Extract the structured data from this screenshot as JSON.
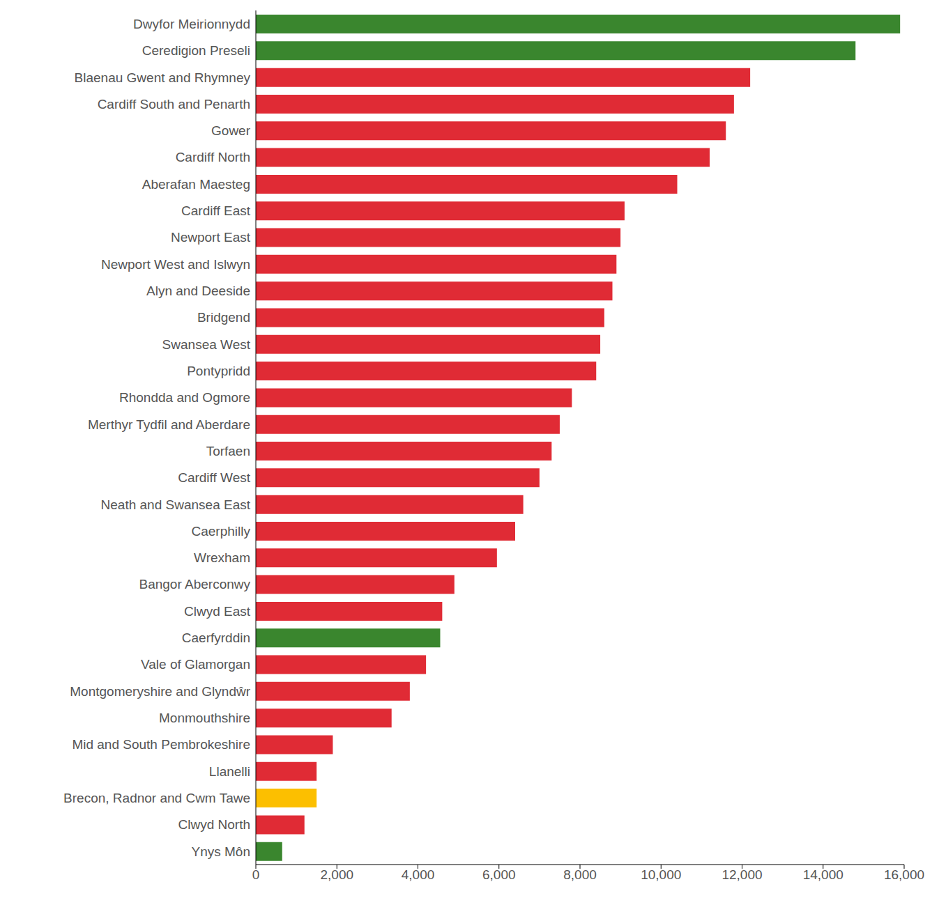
{
  "chart_data": {
    "type": "bar",
    "orientation": "horizontal",
    "categories": [
      "Dwyfor Meirionnydd",
      "Ceredigion Preseli",
      "Blaenau Gwent and Rhymney",
      "Cardiff South and Penarth",
      "Gower",
      "Cardiff North",
      "Aberafan Maesteg",
      "Cardiff East",
      "Newport East",
      "Newport West and Islwyn",
      "Alyn and Deeside",
      "Bridgend",
      "Swansea West",
      "Pontypridd",
      "Rhondda and Ogmore",
      "Merthyr Tydfil and Aberdare",
      "Torfaen",
      "Cardiff West",
      "Neath and Swansea East",
      "Caerphilly",
      "Wrexham",
      "Bangor Aberconwy",
      "Clwyd East",
      "Caerfyrddin",
      "Vale of Glamorgan",
      "Montgomeryshire and Glyndŵr",
      "Monmouthshire",
      "Mid and South Pembrokeshire",
      "Llanelli",
      "Brecon, Radnor and Cwm Tawe",
      "Clwyd North",
      "Ynys Môn"
    ],
    "values": [
      15900,
      14800,
      12200,
      11800,
      11600,
      11200,
      10400,
      9100,
      9000,
      8900,
      8800,
      8600,
      8500,
      8400,
      7800,
      7500,
      7300,
      7000,
      6600,
      6400,
      5950,
      4900,
      4600,
      4550,
      4200,
      3800,
      3350,
      1900,
      1500,
      1500,
      1200,
      650
    ],
    "colors": [
      "#3a862e",
      "#3a862e",
      "#e02b35",
      "#e02b35",
      "#e02b35",
      "#e02b35",
      "#e02b35",
      "#e02b35",
      "#e02b35",
      "#e02b35",
      "#e02b35",
      "#e02b35",
      "#e02b35",
      "#e02b35",
      "#e02b35",
      "#e02b35",
      "#e02b35",
      "#e02b35",
      "#e02b35",
      "#e02b35",
      "#e02b35",
      "#e02b35",
      "#e02b35",
      "#3a862e",
      "#e02b35",
      "#e02b35",
      "#e02b35",
      "#e02b35",
      "#e02b35",
      "#fcbf00",
      "#e02b35",
      "#3a862e"
    ],
    "xlim": [
      0,
      16000
    ],
    "xticks": [
      0,
      {
        "value": 2000,
        "label": "2,000"
      },
      {
        "value": 4000,
        "label": "4,000"
      },
      {
        "value": 6000,
        "label": "6,000"
      },
      {
        "value": 8000,
        "label": "8,000"
      },
      {
        "value": 10000,
        "label": "10,000"
      },
      {
        "value": 12000,
        "label": "12,000"
      },
      {
        "value": 14000,
        "label": "14,000"
      },
      {
        "value": 16000,
        "label": "16,000"
      }
    ],
    "grid": false
  }
}
